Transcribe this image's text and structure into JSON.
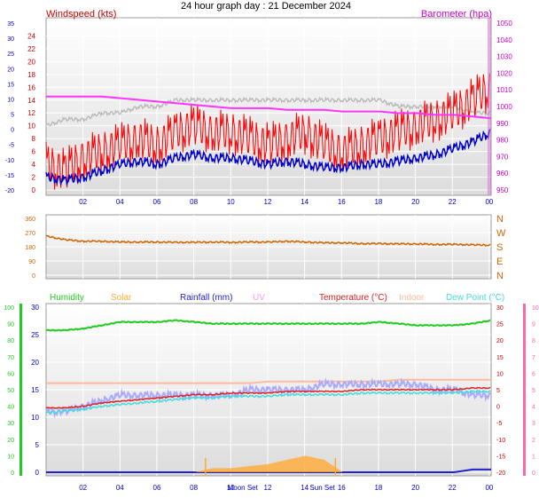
{
  "title": "24 hour graph day : 21 December 2024",
  "colors": {
    "bg": "#ffffff",
    "plot_top": "#ffffff",
    "plot_bottom": "#dcdcdc",
    "grid": "#ffffff",
    "axis_text": "#0000cc",
    "wind_avg": "#0000cc",
    "wind_gust": "#ff0000",
    "wind_dir": "#cc6600",
    "baro": "#ff33ff",
    "humidity": "#22cc22",
    "solar": "#ffaa33",
    "rainfall": "#2222cc",
    "uv": "#ff99ff",
    "temperature": "#dd2222",
    "indoor": "#ffbb99",
    "dewpoint": "#44dddd",
    "outdoor_trace": "#aaaaff"
  },
  "time_ticks": [
    "02",
    "04",
    "06",
    "08",
    "10",
    "12",
    "14",
    "16",
    "18",
    "20",
    "22",
    "00"
  ],
  "chart_data": [
    {
      "type": "line",
      "name": "wind",
      "title": "Windspeed (kts)",
      "right_title": "Barometer (hpa)",
      "left_scale_a": {
        "label": "kts",
        "ticks": [
          0,
          2,
          4,
          6,
          8,
          10,
          12,
          14,
          16,
          18,
          20,
          22,
          24
        ]
      },
      "left_scale_b": {
        "ticks": [
          -20,
          -15,
          -10,
          -5,
          0,
          5,
          10,
          15,
          20,
          25,
          30,
          35
        ]
      },
      "right_scale": {
        "ticks": [
          950,
          960,
          970,
          980,
          990,
          1000,
          1010,
          1020,
          1030,
          1040,
          1050
        ]
      },
      "x": [
        0,
        1,
        2,
        3,
        4,
        5,
        6,
        7,
        8,
        9,
        10,
        11,
        12,
        13,
        14,
        15,
        16,
        17,
        18,
        19,
        20,
        21,
        22,
        23,
        24
      ],
      "series": [
        {
          "name": "gust",
          "values": [
            4,
            3,
            5,
            6,
            7,
            8,
            7,
            9,
            10,
            9,
            9,
            8,
            7,
            8,
            9,
            7,
            6,
            7,
            8,
            9,
            10,
            11,
            12,
            14,
            16
          ]
        },
        {
          "name": "average",
          "values": [
            2,
            1.5,
            2,
            3,
            4,
            4.5,
            4,
            5,
            5.5,
            5,
            5,
            4.5,
            4,
            4.5,
            4,
            3.5,
            3.5,
            4,
            4,
            4.5,
            5,
            5.5,
            6.5,
            7.5,
            9
          ]
        },
        {
          "name": "baro",
          "values": [
            1006,
            1006,
            1006,
            1006,
            1005,
            1004,
            1003,
            1002,
            1001,
            1000,
            999,
            999,
            999,
            998,
            998,
            998,
            997,
            997,
            997,
            996,
            996,
            995,
            995,
            994,
            993
          ]
        },
        {
          "name": "grey",
          "values": [
            10,
            11,
            11,
            12,
            12,
            13,
            13,
            14,
            14,
            14,
            14,
            14,
            14,
            14,
            14,
            14,
            14,
            14,
            14,
            13,
            13,
            13,
            13,
            12,
            12
          ]
        }
      ]
    },
    {
      "type": "line",
      "name": "direction",
      "left_ticks": [
        0,
        90,
        180,
        270,
        360
      ],
      "right_labels": [
        "N",
        "W",
        "S",
        "E",
        "N"
      ],
      "series": [
        {
          "name": "direction",
          "values": [
            248,
            225,
            215,
            215,
            210,
            210,
            210,
            208,
            208,
            210,
            208,
            210,
            210,
            215,
            210,
            205,
            205,
            200,
            200,
            198,
            198,
            195,
            195,
            192,
            190
          ]
        }
      ]
    },
    {
      "type": "line",
      "name": "temperature",
      "headings": [
        "Humidity",
        "Solar",
        "Rainfall (mm)",
        "UV",
        "Temperature (°C)",
        "Indoor",
        "Dew Point (°C)"
      ],
      "humidity_ticks": [
        0,
        10,
        20,
        30,
        40,
        50,
        60,
        70,
        80,
        90,
        100
      ],
      "rain_ticks": [
        0,
        5,
        10,
        15,
        20,
        25,
        30
      ],
      "uv_ticks": [
        0,
        1,
        2,
        3,
        4,
        5,
        6,
        7,
        8,
        9,
        10
      ],
      "temp_ticks": [
        -20,
        -15,
        -10,
        -5,
        0,
        5,
        10,
        15,
        20,
        25,
        30
      ],
      "sun_moon_labels": [
        "Moon Set",
        "Sun Set"
      ],
      "series": [
        {
          "name": "humidity",
          "values": [
            86,
            86,
            87,
            89,
            91,
            91,
            91,
            92,
            91,
            90,
            90,
            90,
            90,
            90,
            90,
            90,
            90,
            90,
            91,
            90,
            89,
            89,
            89,
            90,
            92
          ]
        },
        {
          "name": "temperature",
          "values": [
            -0.5,
            -0.5,
            0,
            1,
            1.5,
            2,
            2.5,
            3,
            3.5,
            3.5,
            4,
            4,
            4,
            4.5,
            4.5,
            4.5,
            4.5,
            5,
            5,
            5,
            5,
            5,
            5,
            5.5,
            5.5
          ]
        },
        {
          "name": "dewpoint",
          "values": [
            -2,
            -1.5,
            -1,
            0,
            0.5,
            1,
            1.5,
            2,
            2.5,
            2.5,
            3,
            3,
            3,
            3.5,
            3.5,
            3.5,
            3.5,
            4,
            4,
            4,
            4,
            4,
            4,
            4.5,
            4.5
          ]
        },
        {
          "name": "indoor",
          "values": [
            7,
            7,
            7,
            7,
            7,
            7,
            7,
            7,
            7,
            7,
            7,
            7,
            7.5,
            7.5,
            7.5,
            7.5,
            7.5,
            7.5,
            7.5,
            8,
            8,
            8,
            8,
            8,
            8
          ]
        },
        {
          "name": "trace",
          "values": [
            11,
            11,
            12,
            13,
            14,
            14,
            14,
            14,
            14,
            14,
            14,
            15,
            15,
            15,
            15,
            16,
            16,
            16,
            16,
            16,
            16,
            15,
            15,
            14,
            14
          ]
        },
        {
          "name": "rainfall",
          "values": [
            0,
            0,
            0,
            0,
            0,
            0,
            0,
            0,
            0,
            0,
            0,
            0,
            0,
            0,
            0,
            0,
            0,
            0,
            0,
            0,
            0,
            0,
            0,
            0.5,
            0.5
          ]
        },
        {
          "name": "solar",
          "values": [
            0,
            0,
            0,
            0,
            0,
            0,
            0,
            0,
            0,
            1,
            1,
            1.5,
            2,
            3,
            4,
            3,
            0,
            0,
            0,
            0,
            0,
            0,
            0,
            0,
            0
          ]
        }
      ]
    }
  ]
}
